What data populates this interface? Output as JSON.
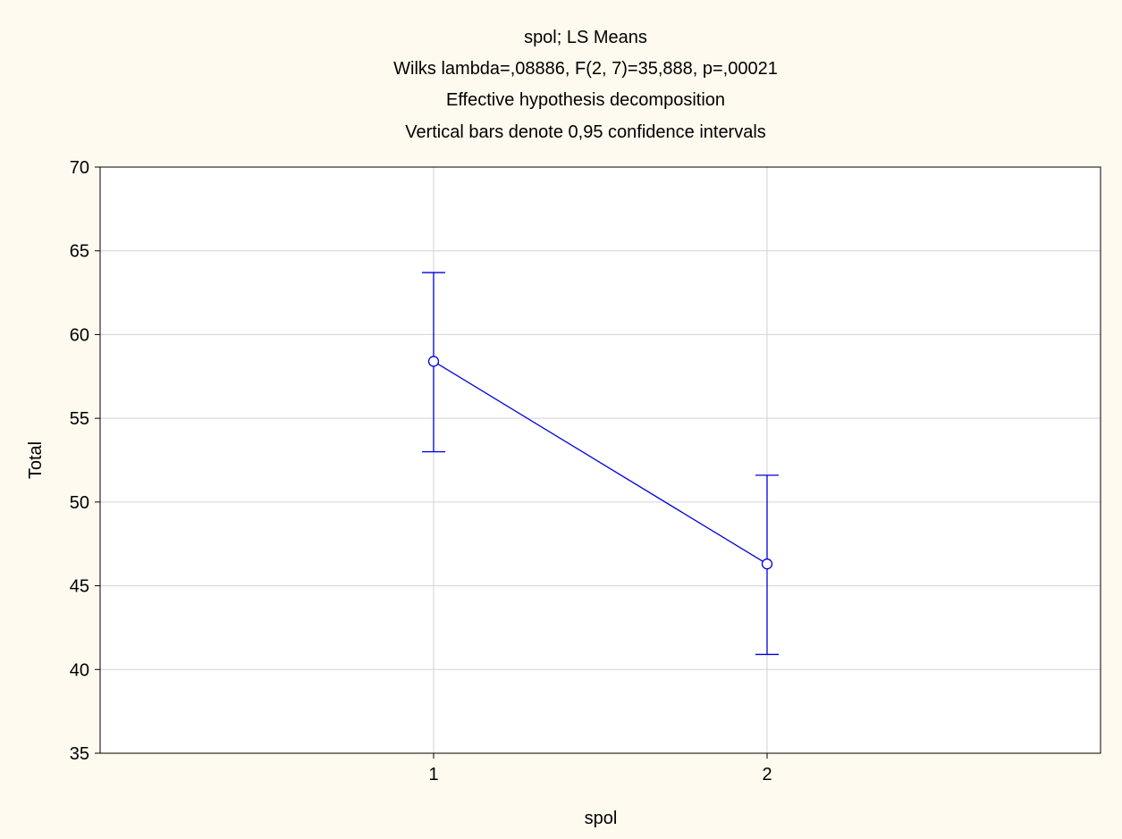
{
  "chart_data": {
    "type": "line",
    "title_lines": [
      "spol; LS Means",
      "Wilks lambda=,08886, F(2, 7)=35,888, p=,00021",
      "Effective hypothesis decomposition",
      "Vertical bars denote 0,95 confidence intervals"
    ],
    "xlabel": "spol",
    "ylabel": "Total",
    "categories": [
      "1",
      "2"
    ],
    "ylim": [
      35,
      70
    ],
    "yticks": [
      "35",
      "40",
      "45",
      "50",
      "55",
      "60",
      "65",
      "70"
    ],
    "grid": true,
    "series": [
      {
        "values": [
          58.4,
          46.3
        ],
        "ci_lower": [
          53.0,
          40.9
        ],
        "ci_upper": [
          63.7,
          51.6
        ]
      }
    ],
    "colors": {
      "background": "#fffaf0",
      "plot_area": "#ffffff",
      "grid": "#d3d3d3",
      "series": "#0000dd"
    }
  }
}
